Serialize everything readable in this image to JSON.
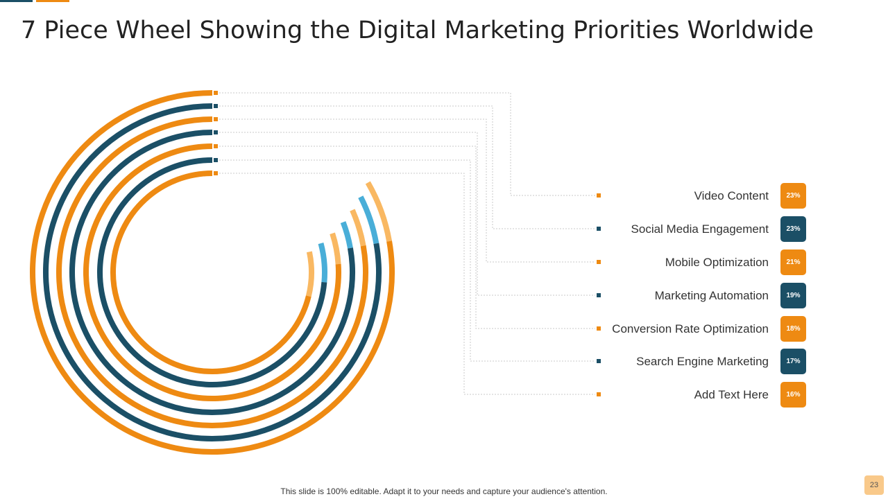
{
  "title": "7 Piece Wheel Showing the Digital Marketing Priorities Worldwide",
  "footer": "This slide is 100% editable. Adapt it to your needs and capture your audience's attention.",
  "page_number": "23",
  "colors": {
    "orange": "#ee8a12",
    "navy": "#1b4f66",
    "light_orange": "#f9b862",
    "light_blue": "#49aed8",
    "page_badge": "#f9c98a",
    "leader_line": "#c8c8c8"
  },
  "chart_data": {
    "type": "radial-bar",
    "title": "",
    "max_value": 100,
    "categories": [
      "Video Content",
      "Social Media Engagement",
      "Mobile Optimization",
      "Marketing Automation",
      "Conversion Rate Optimization",
      "Search Engine Marketing",
      "Add Text Here"
    ],
    "values": [
      23,
      23,
      21,
      19,
      18,
      17,
      16
    ],
    "value_labels": [
      "23%",
      "23%",
      "21%",
      "19%",
      "18%",
      "17%",
      "16%"
    ],
    "series_colors": [
      "orange",
      "navy",
      "orange",
      "navy",
      "orange",
      "navy",
      "orange"
    ],
    "remainder_colors": [
      "light_orange",
      "light_blue",
      "light_orange",
      "light_blue",
      "light_orange",
      "light_blue",
      "light_orange"
    ]
  }
}
